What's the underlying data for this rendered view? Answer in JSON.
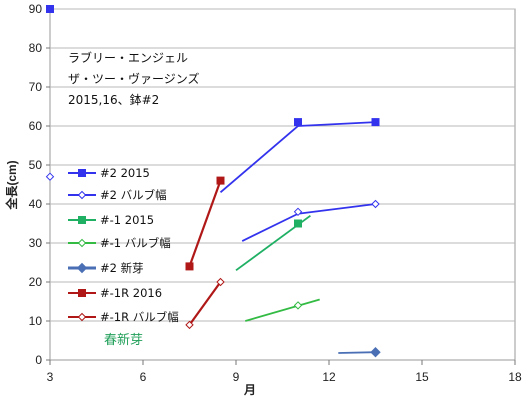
{
  "chart_data": {
    "type": "line",
    "xlabel": "月",
    "ylabel": "全長(cm)",
    "xlim": [
      3,
      18
    ],
    "ylim": [
      0,
      90
    ],
    "xticks": [
      3,
      6,
      9,
      12,
      15,
      18
    ],
    "yticks": [
      0,
      10,
      20,
      30,
      40,
      50,
      60,
      70,
      80,
      90
    ],
    "notes": [
      "ラブリー・エンジェル",
      "ザ・ツー・ヴァージンズ",
      "2015,16、鉢#2"
    ],
    "spring_label": "春新芽",
    "series": [
      {
        "name": "#2 2015",
        "color": "#3333ee",
        "marker": "square",
        "points": [
          [
            3,
            90
          ],
          [
            11,
            61
          ],
          [
            13.5,
            61
          ]
        ],
        "open": false
      },
      {
        "name": "#2 バルブ幅",
        "color": "#3333ee",
        "marker": "diamond-open",
        "points": [
          [
            3,
            47
          ],
          [
            11,
            38
          ],
          [
            13.5,
            40
          ]
        ],
        "open": true
      },
      {
        "name": "#-1 2015",
        "color": "#1fb064",
        "marker": "square",
        "points": [
          [
            11,
            35
          ]
        ],
        "open": false
      },
      {
        "name": "#-1 バルブ幅",
        "color": "#33bb44",
        "marker": "diamond-open",
        "points": [
          [
            11,
            14
          ]
        ],
        "open": true
      },
      {
        "name": "#2 新芽",
        "color": "#4a6fb5",
        "marker": "diamond",
        "points": [
          [
            13.5,
            2
          ]
        ],
        "open": false
      },
      {
        "name": "#-1R 2016",
        "color": "#b01818",
        "marker": "square",
        "points": [
          [
            7.5,
            24
          ],
          [
            8.5,
            46
          ]
        ],
        "open": false
      },
      {
        "name": "#-1R バルブ幅",
        "color": "#b01818",
        "marker": "diamond-open",
        "points": [
          [
            7.5,
            9
          ],
          [
            8.5,
            20
          ]
        ],
        "open": true
      }
    ],
    "trend_lines": [
      {
        "series": "#2 2015",
        "color": "#3333ee",
        "from": [
          8.5,
          43
        ],
        "to": [
          11,
          60
        ]
      },
      {
        "series": "#2 2015",
        "color": "#3333ee",
        "from": [
          11,
          60
        ],
        "to": [
          13.5,
          61
        ]
      },
      {
        "series": "#2 バルブ幅",
        "color": "#3333ee",
        "from": [
          9.2,
          30.5
        ],
        "to": [
          11,
          37.5
        ]
      },
      {
        "series": "#2 バルブ幅",
        "color": "#3333ee",
        "from": [
          11,
          37.5
        ],
        "to": [
          13.5,
          40
        ]
      },
      {
        "series": "#-1 2015",
        "color": "#1fb064",
        "from": [
          9,
          23
        ],
        "to": [
          11.4,
          37
        ]
      },
      {
        "series": "#-1 バルブ幅",
        "color": "#33bb44",
        "from": [
          9.3,
          10
        ],
        "to": [
          11.7,
          15.5
        ]
      },
      {
        "series": "#2 新芽",
        "color": "#4a6fb5",
        "from": [
          12.3,
          1.8
        ],
        "to": [
          13.5,
          2
        ]
      }
    ]
  }
}
